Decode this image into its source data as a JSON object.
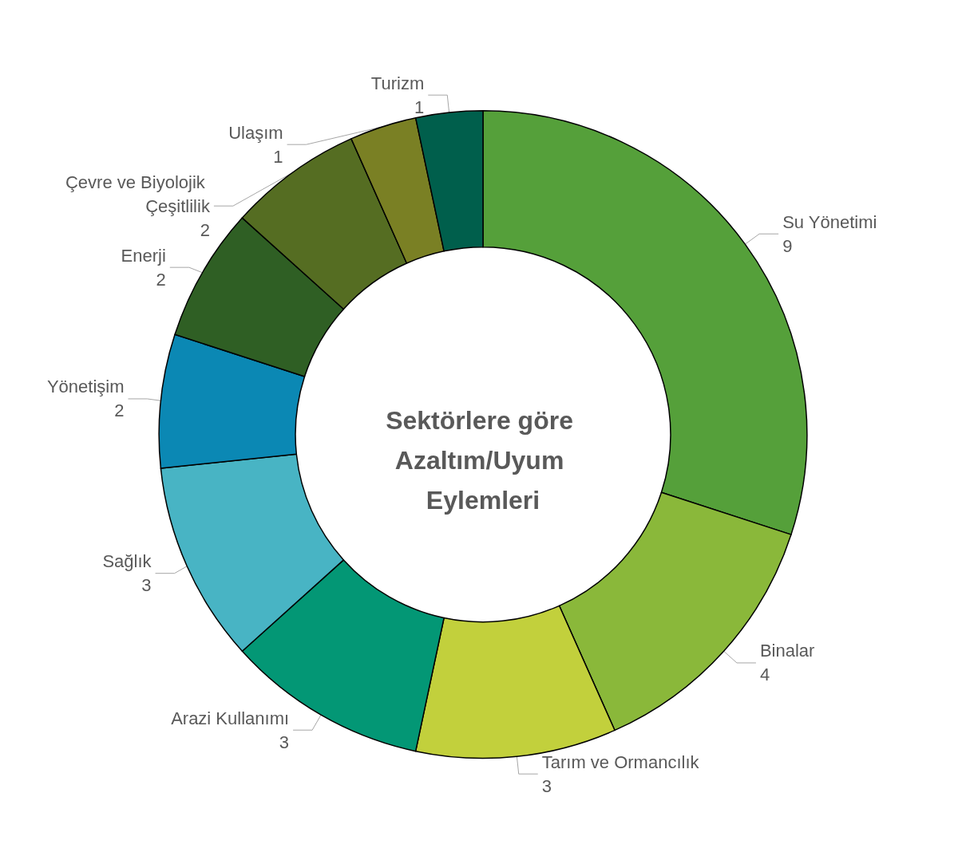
{
  "chart_data": {
    "type": "donut",
    "title": "Sektörlere göre Azaltım/Uyum Eylemleri",
    "categories": [
      "Su Yönetimi",
      "Binalar",
      "Tarım ve Ormancılık",
      "Arazi Kullanımı",
      "Sağlık",
      "Yönetişim",
      "Enerji",
      "Çevre ve Biyolojik Çeşitlilik",
      "Ulaşım",
      "Turizm"
    ],
    "values": [
      9,
      4,
      3,
      3,
      3,
      2,
      2,
      2,
      1,
      1
    ],
    "colors": [
      "#55a03a",
      "#8ab83a",
      "#c2d03c",
      "#039775",
      "#48b4c4",
      "#0b88b4",
      "#2f5f24",
      "#556d22",
      "#7a8024",
      "#005f4c"
    ],
    "data_labels": true,
    "legend": false
  }
}
